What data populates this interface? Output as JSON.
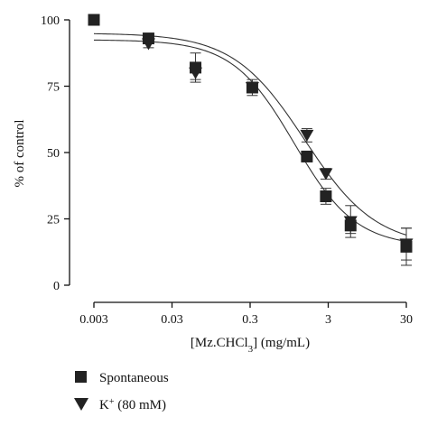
{
  "chart_data": {
    "type": "scatter",
    "xlabel_main": "[Mz.CHCl",
    "xlabel_sub": "3",
    "xlabel_tail": "] (mg/mL)",
    "ylabel": "% of control",
    "x_scale": "log",
    "xlim": [
      0.003,
      30
    ],
    "ylim": [
      0,
      100
    ],
    "x_ticks": [
      {
        "value": 0.003,
        "label": "0.003"
      },
      {
        "value": 0.03,
        "label": "0.03"
      },
      {
        "value": 0.3,
        "label": "0.3"
      },
      {
        "value": 3,
        "label": "3"
      },
      {
        "value": 30,
        "label": "30"
      }
    ],
    "y_ticks": [
      {
        "value": 0,
        "label": "0"
      },
      {
        "value": 25,
        "label": "25"
      },
      {
        "value": 50,
        "label": "50"
      },
      {
        "value": 75,
        "label": "75"
      },
      {
        "value": 100,
        "label": "100"
      }
    ],
    "grid": false,
    "legend_position": "bottom-left",
    "series": [
      {
        "name": "Spontaneous",
        "marker": "square",
        "color": "#222222",
        "points": [
          {
            "x": 0.003,
            "y": 100,
            "err": 0
          },
          {
            "x": 0.015,
            "y": 93,
            "err": 1.5
          },
          {
            "x": 0.06,
            "y": 82,
            "err": 5.5
          },
          {
            "x": 0.32,
            "y": 74.5,
            "err": 3
          },
          {
            "x": 1.6,
            "y": 48.5,
            "err": 2
          },
          {
            "x": 2.8,
            "y": 33.5,
            "err": 3
          },
          {
            "x": 5.8,
            "y": 22.5,
            "err": 3
          },
          {
            "x": 30,
            "y": 14.5,
            "err": 7
          }
        ],
        "fit": {
          "top": 92.5,
          "bottom": 14.5,
          "ec50": 1.1,
          "hill": 1.1
        }
      },
      {
        "name_main": "K",
        "name_sup": "+",
        "name_tail": " (80 mM)",
        "marker": "triangle-down",
        "color": "#222222",
        "points": [
          {
            "x": 0.015,
            "y": 91,
            "err": 1.5
          },
          {
            "x": 0.06,
            "y": 80,
            "err": 2.5
          },
          {
            "x": 0.32,
            "y": 74.5,
            "err": 2
          },
          {
            "x": 1.6,
            "y": 56.5,
            "err": 2.5
          },
          {
            "x": 2.8,
            "y": 42,
            "err": 2
          },
          {
            "x": 5.8,
            "y": 24,
            "err": 6
          },
          {
            "x": 30,
            "y": 15.5,
            "err": 6
          }
        ],
        "fit": {
          "top": 95,
          "bottom": 14.5,
          "ec50": 1.5,
          "hill": 0.95
        }
      }
    ]
  }
}
